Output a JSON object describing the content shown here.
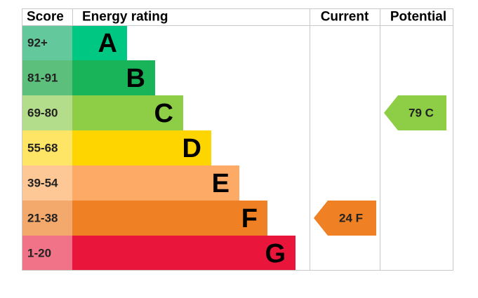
{
  "header": {
    "score": "Score",
    "rating": "Energy rating",
    "current": "Current",
    "potential": "Potential"
  },
  "bands": [
    {
      "score": "92+",
      "letter": "A"
    },
    {
      "score": "81-91",
      "letter": "B"
    },
    {
      "score": "69-80",
      "letter": "C"
    },
    {
      "score": "55-68",
      "letter": "D"
    },
    {
      "score": "39-54",
      "letter": "E"
    },
    {
      "score": "21-38",
      "letter": "F"
    },
    {
      "score": "1-20",
      "letter": "G"
    }
  ],
  "current": "24 F",
  "potential": "79 C"
}
